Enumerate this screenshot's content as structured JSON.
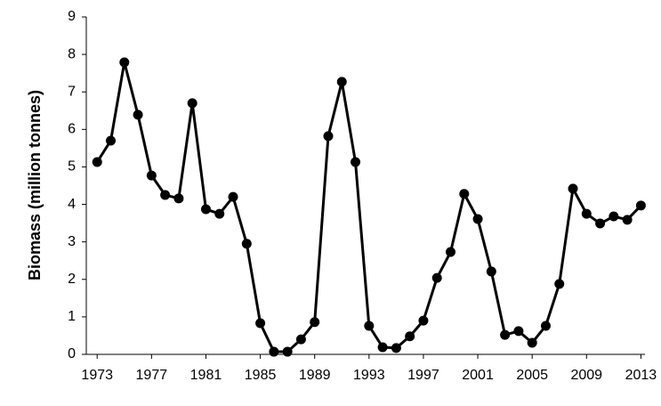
{
  "chart_data": {
    "type": "line",
    "y_label": "Biomass (million tonnes)",
    "x": [
      1973,
      1974,
      1975,
      1976,
      1977,
      1978,
      1979,
      1980,
      1981,
      1982,
      1983,
      1984,
      1985,
      1986,
      1987,
      1988,
      1989,
      1990,
      1991,
      1992,
      1993,
      1994,
      1995,
      1996,
      1997,
      1998,
      1999,
      2000,
      2001,
      2002,
      2003,
      2004,
      2005,
      2006,
      2007,
      2008,
      2009,
      2010,
      2011,
      2012,
      2013
    ],
    "series": [
      {
        "color": "#000000",
        "values": [
          5.13,
          5.7,
          7.79,
          6.39,
          4.77,
          4.25,
          4.16,
          6.7,
          3.87,
          3.75,
          4.2,
          2.95,
          0.83,
          0.07,
          0.07,
          0.4,
          0.86,
          5.82,
          7.27,
          5.13,
          0.76,
          0.19,
          0.17,
          0.48,
          0.9,
          2.04,
          2.73,
          4.28,
          3.61,
          2.21,
          0.52,
          0.62,
          0.31,
          0.76,
          1.88,
          4.42,
          3.75,
          3.49,
          3.68,
          3.59,
          3.97
        ]
      }
    ],
    "xlim": [
      1972.2,
      2013.3
    ],
    "xticks": [
      1973,
      1977,
      1981,
      1985,
      1989,
      1993,
      1997,
      2001,
      2005,
      2009,
      2013
    ],
    "ylim": [
      0,
      9
    ],
    "yticks": [
      0,
      1,
      2,
      3,
      4,
      5,
      6,
      7,
      8,
      9
    ],
    "grid": false
  }
}
